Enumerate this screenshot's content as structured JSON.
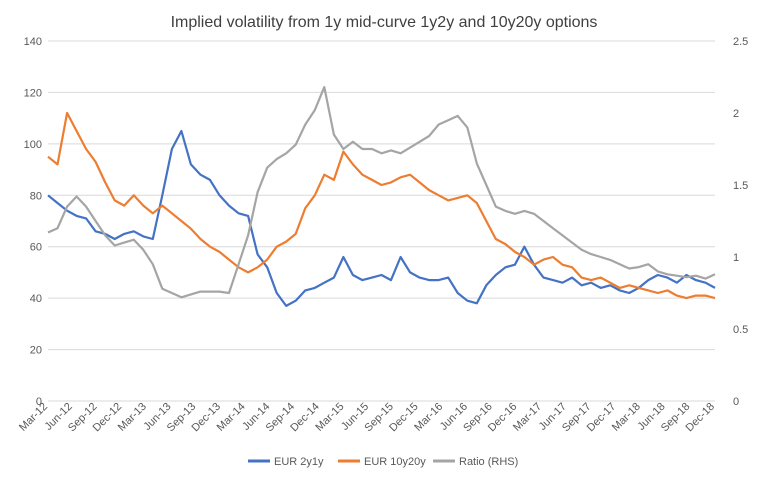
{
  "chart_data": {
    "type": "line",
    "title": "Implied volatility from 1y mid-curve 1y2y and 10y20y options",
    "xlabel": "",
    "ylabel": "",
    "y2label": "",
    "ylim": [
      0,
      140
    ],
    "y2lim": [
      0,
      2.5
    ],
    "yticks": [
      "0",
      "20",
      "40",
      "60",
      "80",
      "100",
      "120",
      "140"
    ],
    "y2ticks": [
      "0",
      "0.5",
      "1",
      "1.5",
      "2",
      "2.5"
    ],
    "xticks": [
      "Mar-12",
      "Jun-12",
      "Sep-12",
      "Dec-12",
      "Mar-13",
      "Jun-13",
      "Sep-13",
      "Dec-13",
      "Mar-14",
      "Jun-14",
      "Sep-14",
      "Dec-14",
      "Mar-15",
      "Jun-15",
      "Sep-15",
      "Dec-15",
      "Mar-16",
      "Jun-16",
      "Sep-16",
      "Dec-16",
      "Mar-17",
      "Jun-17",
      "Sep-17",
      "Dec-17",
      "Mar-18",
      "Jun-18",
      "Sep-18",
      "Dec-18"
    ],
    "grid": "horizontal",
    "legend": "bottom",
    "series": [
      {
        "name": "EUR 2y1y",
        "color": "#4472C4",
        "axis": "left",
        "values": [
          80,
          77,
          74,
          72,
          71,
          66,
          65,
          63,
          65,
          66,
          64,
          63,
          80,
          98,
          105,
          92,
          88,
          86,
          80,
          76,
          73,
          72,
          57,
          52,
          42,
          37,
          39,
          43,
          44,
          46,
          48,
          56,
          49,
          47,
          48,
          49,
          47,
          56,
          50,
          48,
          47,
          47,
          48,
          42,
          39,
          38,
          45,
          49,
          52,
          53,
          60,
          53,
          48,
          47,
          46,
          48,
          45,
          46,
          44,
          45,
          43,
          42,
          44,
          47,
          49,
          48,
          46,
          49,
          47,
          46,
          44
        ]
      },
      {
        "name": "EUR 10y20y",
        "color": "#ED7D31",
        "axis": "left",
        "values": [
          95,
          92,
          112,
          105,
          98,
          93,
          85,
          78,
          76,
          80,
          76,
          73,
          76,
          73,
          70,
          67,
          63,
          60,
          58,
          55,
          52,
          50,
          52,
          55,
          60,
          62,
          65,
          75,
          80,
          88,
          86,
          97,
          92,
          88,
          86,
          84,
          85,
          87,
          88,
          85,
          82,
          80,
          78,
          79,
          80,
          77,
          70,
          63,
          61,
          58,
          56,
          53,
          55,
          56,
          53,
          52,
          48,
          47,
          48,
          46,
          44,
          45,
          44,
          43,
          42,
          43,
          41,
          40,
          41,
          41,
          40
        ]
      },
      {
        "name": "Ratio (RHS)",
        "color": "#A5A5A5",
        "axis": "right",
        "values": [
          1.17,
          1.2,
          1.35,
          1.42,
          1.35,
          1.25,
          1.15,
          1.08,
          1.1,
          1.12,
          1.05,
          0.95,
          0.78,
          0.75,
          0.72,
          0.74,
          0.76,
          0.76,
          0.76,
          0.75,
          0.95,
          1.15,
          1.45,
          1.62,
          1.68,
          1.72,
          1.78,
          1.92,
          2.02,
          2.18,
          1.85,
          1.75,
          1.8,
          1.75,
          1.75,
          1.72,
          1.74,
          1.72,
          1.76,
          1.8,
          1.84,
          1.92,
          1.95,
          1.98,
          1.9,
          1.65,
          1.5,
          1.35,
          1.32,
          1.3,
          1.32,
          1.3,
          1.25,
          1.2,
          1.15,
          1.1,
          1.05,
          1.02,
          1.0,
          0.98,
          0.95,
          0.92,
          0.93,
          0.95,
          0.9,
          0.88,
          0.87,
          0.86,
          0.87,
          0.85,
          0.88
        ]
      }
    ]
  }
}
